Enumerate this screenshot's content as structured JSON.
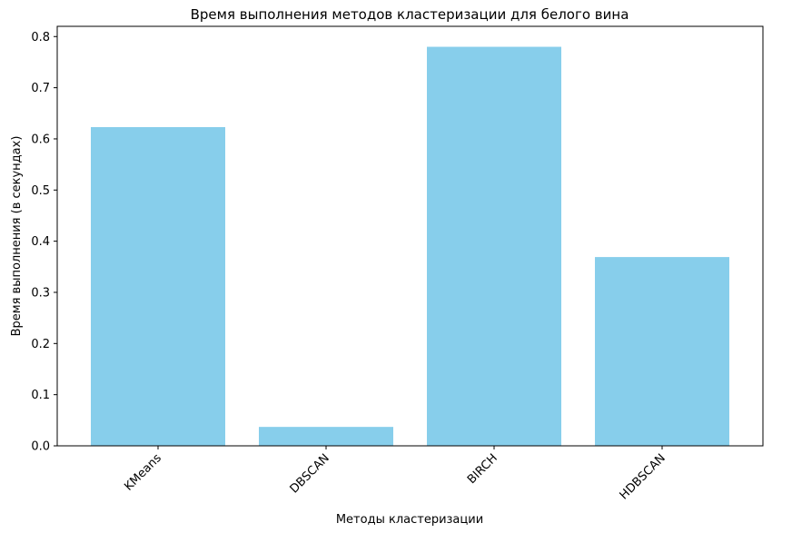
{
  "chart_data": {
    "type": "bar",
    "title": "Время выполнения методов кластеризации для белого вина",
    "xlabel": "Методы кластеризации",
    "ylabel": "Время выполнения (в секундах)",
    "categories": [
      "KMeans",
      "DBSCAN",
      "BIRCH",
      "HDBSCAN"
    ],
    "values": [
      0.623,
      0.037,
      0.78,
      0.369
    ],
    "ylim": [
      0,
      0.82
    ],
    "yticks": [
      "0.0",
      "0.1",
      "0.2",
      "0.3",
      "0.4",
      "0.5",
      "0.6",
      "0.7",
      "0.8"
    ],
    "bar_color": "#87ceeb",
    "grid": false,
    "x_tick_rotation": "45°"
  }
}
